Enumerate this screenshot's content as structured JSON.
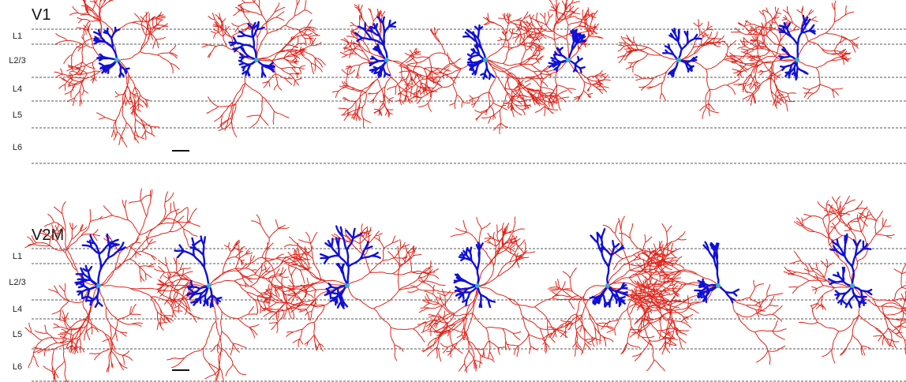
{
  "panels": [
    {
      "title": "V1",
      "layers": [
        "L1",
        "L2/3",
        "L4",
        "L5",
        "L6"
      ]
    },
    {
      "title": "V2M",
      "layers": [
        "L1",
        "L2/3",
        "L4",
        "L5",
        "L6"
      ]
    }
  ]
}
